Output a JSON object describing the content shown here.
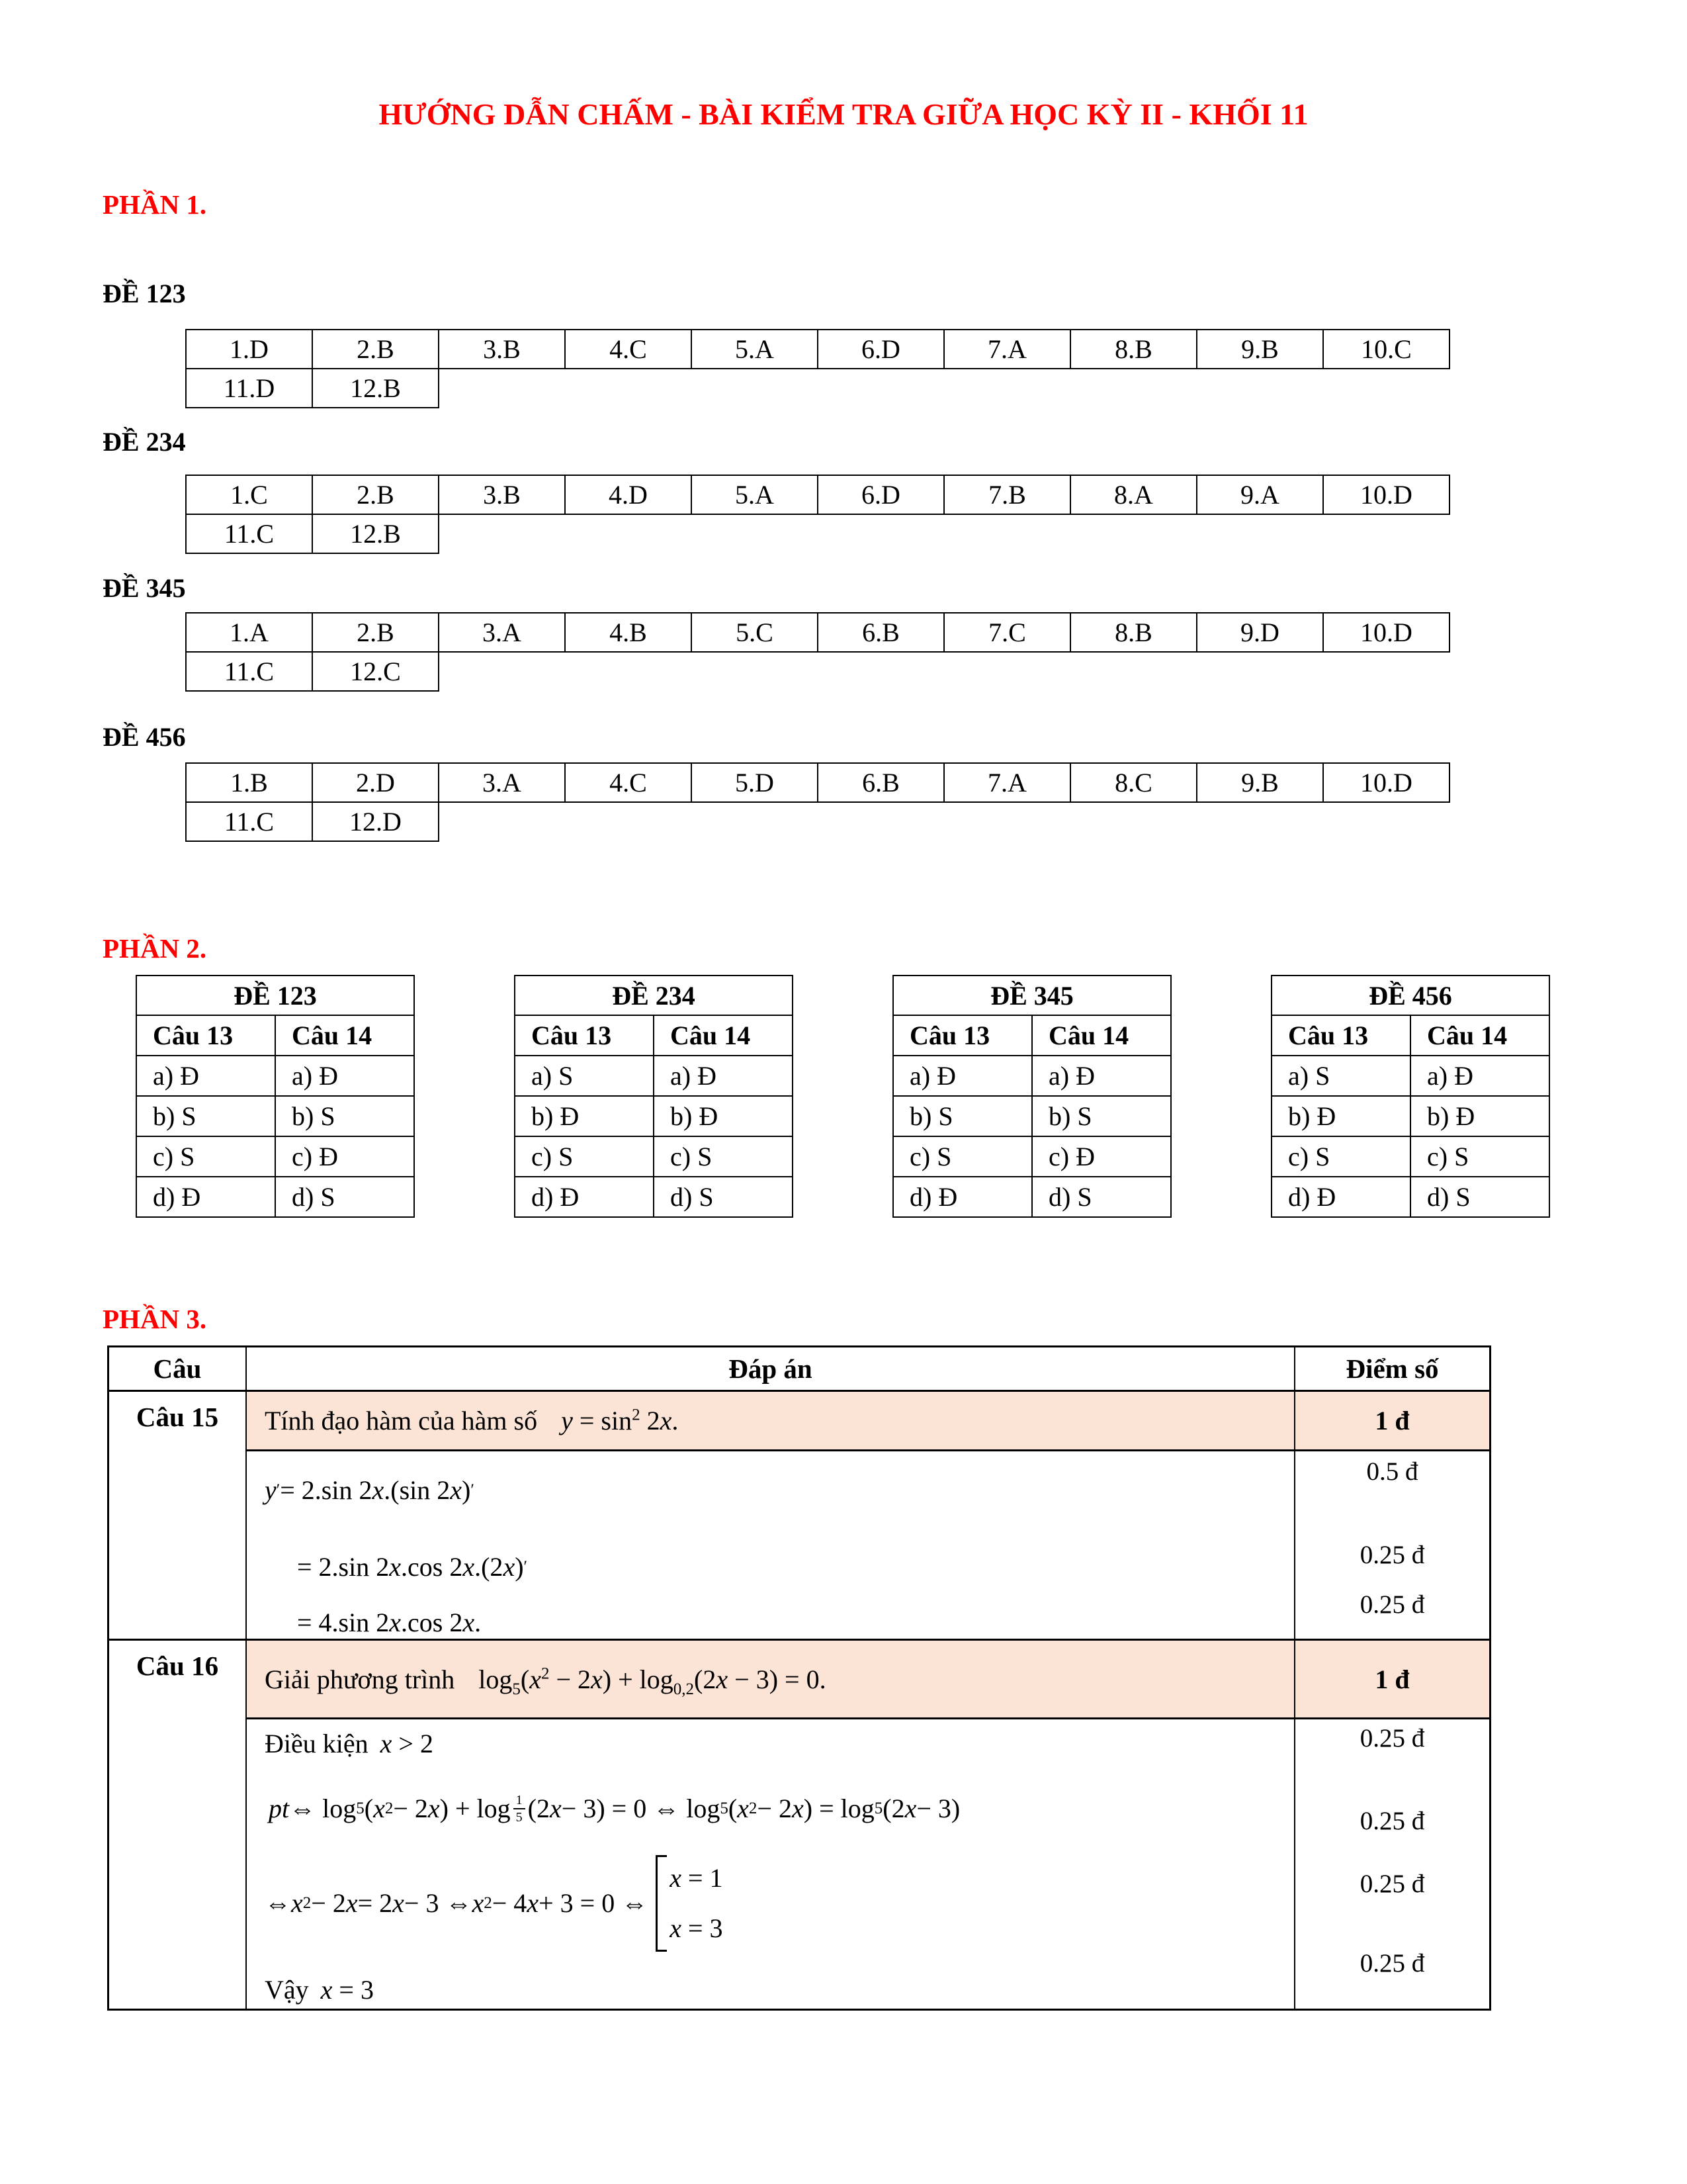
{
  "title": "HƯỚNG DẪN CHẤM - BÀI KIỂM TRA GIỮA HỌC KỲ II - KHỐI 11",
  "colors": {
    "accent_red": "#FF0000",
    "highlight": "#FBE4D5"
  },
  "part1": {
    "heading": "PHẦN 1.",
    "tables": [
      {
        "label": "ĐỀ 123",
        "row1": [
          "1.D",
          "2.B",
          "3.B",
          "4.C",
          "5.A",
          "6.D",
          "7.A",
          "8.B",
          "9.B",
          "10.C"
        ],
        "row2": [
          "11.D",
          "12.B"
        ]
      },
      {
        "label": "ĐỀ 234",
        "row1": [
          "1.C",
          "2.B",
          "3.B",
          "4.D",
          "5.A",
          "6.D",
          "7.B",
          "8.A",
          "9.A",
          "10.D"
        ],
        "row2": [
          "11.C",
          "12.B"
        ]
      },
      {
        "label": "ĐỀ 345",
        "row1": [
          "1.A",
          "2.B",
          "3.A",
          "4.B",
          "5.C",
          "6.B",
          "7.C",
          "8.B",
          "9.D",
          "10.D"
        ],
        "row2": [
          "11.C",
          "12.C"
        ]
      },
      {
        "label": "ĐỀ 456",
        "row1": [
          "1.B",
          "2.D",
          "3.A",
          "4.C",
          "5.D",
          "6.B",
          "7.A",
          "8.C",
          "9.B",
          "10.D"
        ],
        "row2": [
          "11.C",
          "12.D"
        ]
      }
    ]
  },
  "part2": {
    "heading": "PHẦN 2.",
    "col_headers": [
      "Câu 13",
      "Câu 14"
    ],
    "tables": [
      {
        "label": "ĐỀ 123",
        "cau13": [
          "a) Đ",
          "b) S",
          "c) S",
          "d) Đ"
        ],
        "cau14": [
          "a) Đ",
          "b) S",
          "c) Đ",
          "d) S"
        ]
      },
      {
        "label": "ĐỀ 234",
        "cau13": [
          "a) S",
          "b) Đ",
          "c) S",
          "d) Đ"
        ],
        "cau14": [
          "a) Đ",
          "b) Đ",
          "c) S",
          "d) S"
        ]
      },
      {
        "label": "ĐỀ 345",
        "cau13": [
          "a) Đ",
          "b) S",
          "c) S",
          "d) Đ"
        ],
        "cau14": [
          "a) Đ",
          "b) S",
          "c) Đ",
          "d) S"
        ]
      },
      {
        "label": "ĐỀ 456",
        "cau13": [
          "a) S",
          "b) Đ",
          "c) S",
          "d) Đ"
        ],
        "cau14": [
          "a) Đ",
          "b) Đ",
          "c) S",
          "d) S"
        ]
      }
    ]
  },
  "part3": {
    "heading": "PHẦN 3.",
    "headers": {
      "cau": "Câu",
      "dapan": "Đáp án",
      "diemso": "Điểm số"
    },
    "cau15": {
      "label": "Câu 15",
      "problem_prefix": "Tính đạo hàm của hàm số",
      "problem_math": [
        {
          "t": "i",
          "v": "y"
        },
        {
          "t": "r",
          "v": " = sin"
        },
        {
          "t": "sup",
          "v": "2"
        },
        {
          "t": "r",
          "v": " 2"
        },
        {
          "t": "i",
          "v": "x"
        },
        {
          "t": "r",
          "v": "."
        }
      ],
      "problem_points": "1 đ",
      "lines": {
        "l1": [
          {
            "t": "i",
            "v": "y"
          },
          {
            "t": "sup",
            "v": "′"
          },
          {
            "t": "r",
            "v": " = 2.sin 2"
          },
          {
            "t": "i",
            "v": "x"
          },
          {
            "t": "r",
            "v": ".(sin 2"
          },
          {
            "t": "i",
            "v": "x"
          },
          {
            "t": "r",
            "v": ")"
          },
          {
            "t": "sup",
            "v": "′"
          }
        ],
        "l2": [
          {
            "t": "r",
            "v": "= 2.sin 2"
          },
          {
            "t": "i",
            "v": "x"
          },
          {
            "t": "r",
            "v": ".cos 2"
          },
          {
            "t": "i",
            "v": "x"
          },
          {
            "t": "r",
            "v": ".(2"
          },
          {
            "t": "i",
            "v": "x"
          },
          {
            "t": "r",
            "v": ")"
          },
          {
            "t": "sup",
            "v": "′"
          }
        ],
        "l3": [
          {
            "t": "r",
            "v": "= 4.sin 2"
          },
          {
            "t": "i",
            "v": "x"
          },
          {
            "t": "r",
            "v": ".cos 2"
          },
          {
            "t": "i",
            "v": "x"
          },
          {
            "t": "r",
            "v": "."
          }
        ]
      },
      "points": [
        "0.5 đ",
        "0.25 đ",
        "0.25 đ"
      ]
    },
    "cau16": {
      "label": "Câu 16",
      "problem_prefix": "Giải phương trình",
      "problem_math": [
        {
          "t": "r",
          "v": "log"
        },
        {
          "t": "sub",
          "v": "5"
        },
        {
          "t": "r",
          "v": "("
        },
        {
          "t": "i",
          "v": "x"
        },
        {
          "t": "sup",
          "v": "2"
        },
        {
          "t": "r",
          "v": " − 2"
        },
        {
          "t": "i",
          "v": "x"
        },
        {
          "t": "r",
          "v": ") + log"
        },
        {
          "t": "sub",
          "v": "0,2"
        },
        {
          "t": "r",
          "v": "(2"
        },
        {
          "t": "i",
          "v": "x"
        },
        {
          "t": "r",
          "v": " − 3) = 0."
        }
      ],
      "problem_points": "1 đ",
      "condition_prefix": "Điều kiện",
      "conclusion_prefix": "Vậy",
      "lines": {
        "condition": [
          {
            "t": "i",
            "v": "x"
          },
          {
            "t": "r",
            "v": " > 2"
          }
        ],
        "pt": [
          {
            "t": "i",
            "v": "pt"
          },
          {
            "t": "r",
            "v": " ⇔ log"
          },
          {
            "t": "sub",
            "v": "5"
          },
          {
            "t": "r",
            "v": "("
          },
          {
            "t": "i",
            "v": "x"
          },
          {
            "t": "sup",
            "v": "2"
          },
          {
            "t": "r",
            "v": " − 2"
          },
          {
            "t": "i",
            "v": "x"
          },
          {
            "t": "r",
            "v": ") + log"
          },
          {
            "t": "frac",
            "num": "1",
            "den": "5"
          },
          {
            "t": "r",
            "v": "(2"
          },
          {
            "t": "i",
            "v": "x"
          },
          {
            "t": "r",
            "v": " − 3) = 0 ⇔ log"
          },
          {
            "t": "sub",
            "v": "5"
          },
          {
            "t": "r",
            "v": "("
          },
          {
            "t": "i",
            "v": "x"
          },
          {
            "t": "sup",
            "v": "2"
          },
          {
            "t": "r",
            "v": " − 2"
          },
          {
            "t": "i",
            "v": "x"
          },
          {
            "t": "r",
            "v": ") = log"
          },
          {
            "t": "sub",
            "v": "5"
          },
          {
            "t": "r",
            "v": "(2"
          },
          {
            "t": "i",
            "v": "x"
          },
          {
            "t": "r",
            "v": " − 3)"
          }
        ],
        "quad": [
          {
            "t": "r",
            "v": "⇔ "
          },
          {
            "t": "i",
            "v": "x"
          },
          {
            "t": "sup",
            "v": "2"
          },
          {
            "t": "r",
            "v": " − 2"
          },
          {
            "t": "i",
            "v": "x"
          },
          {
            "t": "r",
            "v": " = 2"
          },
          {
            "t": "i",
            "v": "x"
          },
          {
            "t": "r",
            "v": " − 3 ⇔ "
          },
          {
            "t": "i",
            "v": "x"
          },
          {
            "t": "sup",
            "v": "2"
          },
          {
            "t": "r",
            "v": " − 4"
          },
          {
            "t": "i",
            "v": "x"
          },
          {
            "t": "r",
            "v": " + 3 = 0 ⇔ "
          },
          {
            "t": "cases",
            "v": [
              [
                {
                  "t": "i",
                  "v": "x"
                },
                {
                  "t": "r",
                  "v": " = 1"
                }
              ],
              [
                {
                  "t": "i",
                  "v": "x"
                },
                {
                  "t": "r",
                  "v": " = 3"
                }
              ]
            ]
          }
        ],
        "conclusion": [
          {
            "t": "i",
            "v": "x"
          },
          {
            "t": "r",
            "v": " = 3"
          }
        ]
      },
      "points": [
        "0.25 đ",
        "0.25 đ",
        "0.25 đ",
        "0.25 đ"
      ]
    }
  }
}
